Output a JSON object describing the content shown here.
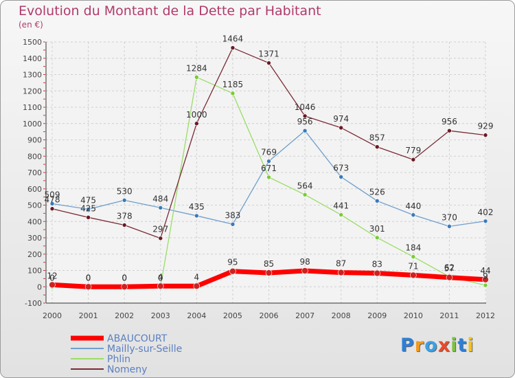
{
  "chart_data": {
    "type": "line",
    "title": "Evolution du Montant de la Dette par Habitant",
    "unit_label": "(en €)",
    "xlabel": "",
    "ylabel": "",
    "x": [
      "2000",
      "2001",
      "2002",
      "2003",
      "2004",
      "2005",
      "2006",
      "2007",
      "2008",
      "2009",
      "2010",
      "2011",
      "2012"
    ],
    "ylim": [
      -100,
      1500
    ],
    "yticks": [
      -100,
      0,
      100,
      200,
      300,
      400,
      500,
      600,
      700,
      800,
      900,
      1000,
      1100,
      1200,
      1300,
      1400,
      1500
    ],
    "grid": true,
    "legend_position": "bottom-left",
    "series": [
      {
        "name": "ABAUCOURT",
        "color": "#ff0000",
        "marker": "#cc2222",
        "width": 7,
        "values": [
          12,
          0,
          0,
          4,
          4,
          95,
          85,
          98,
          87,
          83,
          71,
          57,
          44
        ],
        "labels": [
          "12",
          "0",
          "0",
          "4",
          "4",
          "95",
          "85",
          "98",
          "87",
          "83",
          "71",
          "57",
          "44"
        ]
      },
      {
        "name": "Mailly-sur-Seille",
        "color": "#6f9ecc",
        "marker": "#3a7ab8",
        "width": 1.3,
        "values": [
          509,
          475,
          530,
          484,
          435,
          383,
          769,
          956,
          673,
          526,
          440,
          370,
          402
        ],
        "labels": [
          "509",
          "475",
          "530",
          "484",
          "435",
          "383",
          "769",
          "956",
          "673",
          "526",
          "440",
          "370",
          "402"
        ]
      },
      {
        "name": "Phlin",
        "color": "#99dd66",
        "marker": "#77cc33",
        "width": 1.3,
        "values": [
          0,
          0,
          0,
          0,
          1284,
          1185,
          671,
          564,
          441,
          301,
          184,
          62,
          9
        ],
        "labels": [
          "0",
          "0",
          "0",
          "0",
          "1284",
          "1185",
          "671",
          "564",
          "441",
          "301",
          "184",
          "62",
          "9"
        ]
      },
      {
        "name": "Nomeny",
        "color": "#7a2a35",
        "marker": "#6a1a25",
        "width": 1.3,
        "values": [
          478,
          425,
          378,
          297,
          1000,
          1464,
          1371,
          1046,
          974,
          857,
          779,
          956,
          929
        ],
        "labels": [
          "478",
          "425",
          "378",
          "297",
          "1000",
          "1464",
          "1371",
          "1046",
          "974",
          "857",
          "779",
          "956",
          "929"
        ]
      }
    ]
  },
  "logo": {
    "text": "Proxiti",
    "letters": [
      "P",
      "r",
      "o",
      "x",
      "i",
      "t",
      "i"
    ],
    "colors": [
      "#2e7fd6",
      "#f29a1f",
      "#3aa0e6",
      "#e94a2b",
      "#7cc242",
      "#2e7fd6",
      "#f2c21f"
    ]
  }
}
